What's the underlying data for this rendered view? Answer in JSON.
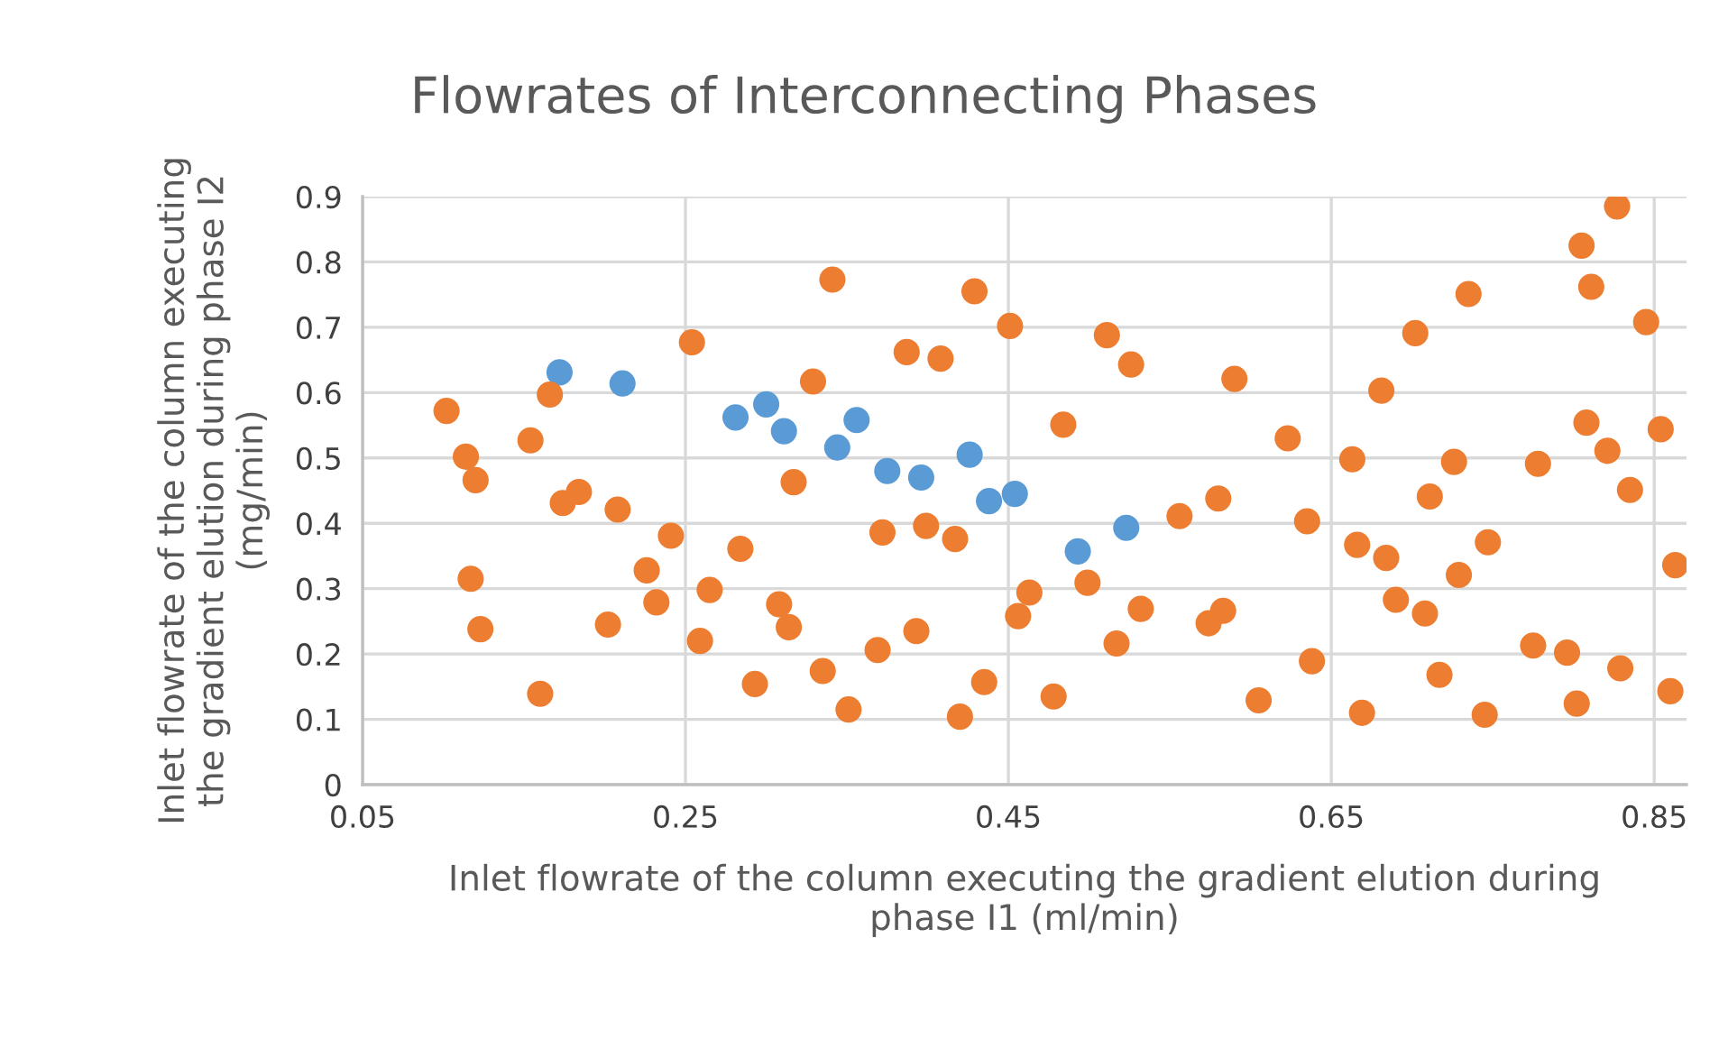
{
  "chart_data": {
    "type": "scatter",
    "title": "Flowrates of Interconnecting Phases",
    "xlabel": "Inlet flowrate of the column executing the gradient elution during\nphase I1 (ml/min)",
    "ylabel": "Inlet flowrate of the column executing\nthe gradient elution during phase I2\n(mg/min)",
    "xlim": [
      0.05,
      0.87
    ],
    "xticks": [
      0.05,
      0.25,
      0.45,
      0.65,
      0.85
    ],
    "ylim": [
      0,
      0.9
    ],
    "yticks": [
      0,
      0.1,
      0.2,
      0.3,
      0.4,
      0.5,
      0.6,
      0.7,
      0.8,
      0.9
    ],
    "grid": true,
    "marker": "circle",
    "series": [
      {
        "color": "#5b9bd5",
        "x": [
          0.172,
          0.211,
          0.281,
          0.3,
          0.311,
          0.344,
          0.356,
          0.375,
          0.396,
          0.426,
          0.438,
          0.454,
          0.493,
          0.523
        ],
        "values": [
          0.631,
          0.614,
          0.562,
          0.582,
          0.541,
          0.516,
          0.558,
          0.48,
          0.47,
          0.505,
          0.434,
          0.445,
          0.357,
          0.393
        ]
      },
      {
        "color": "#ed7d31",
        "x": [
          0.254,
          0.166,
          0.102,
          0.154,
          0.114,
          0.12,
          0.184,
          0.174,
          0.208,
          0.241,
          0.284,
          0.226,
          0.117,
          0.265,
          0.232,
          0.308,
          0.314,
          0.123,
          0.202,
          0.259,
          0.293,
          0.16,
          0.317,
          0.341,
          0.329,
          0.387,
          0.408,
          0.429,
          0.451,
          0.511,
          0.526,
          0.484,
          0.372,
          0.399,
          0.417,
          0.463,
          0.456,
          0.499,
          0.532,
          0.517,
          0.393,
          0.369,
          0.335,
          0.351,
          0.435,
          0.42,
          0.478,
          0.556,
          0.58,
          0.59,
          0.574,
          0.583,
          0.827,
          0.805,
          0.811,
          0.735,
          0.845,
          0.702,
          0.681,
          0.623,
          0.663,
          0.726,
          0.711,
          0.778,
          0.808,
          0.821,
          0.854,
          0.835,
          0.635,
          0.666,
          0.684,
          0.747,
          0.729,
          0.863,
          0.69,
          0.708,
          0.775,
          0.796,
          0.829,
          0.86,
          0.638,
          0.717,
          0.605,
          0.669,
          0.745,
          0.802
        ],
        "values": [
          0.677,
          0.597,
          0.572,
          0.527,
          0.502,
          0.466,
          0.448,
          0.431,
          0.421,
          0.381,
          0.361,
          0.328,
          0.315,
          0.298,
          0.279,
          0.276,
          0.241,
          0.238,
          0.245,
          0.22,
          0.154,
          0.139,
          0.463,
          0.773,
          0.617,
          0.662,
          0.652,
          0.755,
          0.702,
          0.688,
          0.643,
          0.551,
          0.386,
          0.396,
          0.376,
          0.294,
          0.258,
          0.309,
          0.269,
          0.216,
          0.235,
          0.206,
          0.174,
          0.115,
          0.157,
          0.104,
          0.135,
          0.411,
          0.438,
          0.621,
          0.247,
          0.266,
          0.885,
          0.825,
          0.762,
          0.751,
          0.708,
          0.691,
          0.603,
          0.53,
          0.498,
          0.494,
          0.441,
          0.491,
          0.554,
          0.511,
          0.544,
          0.451,
          0.403,
          0.367,
          0.347,
          0.371,
          0.321,
          0.336,
          0.283,
          0.262,
          0.213,
          0.202,
          0.178,
          0.143,
          0.189,
          0.168,
          0.129,
          0.11,
          0.107,
          0.124
        ]
      }
    ]
  }
}
